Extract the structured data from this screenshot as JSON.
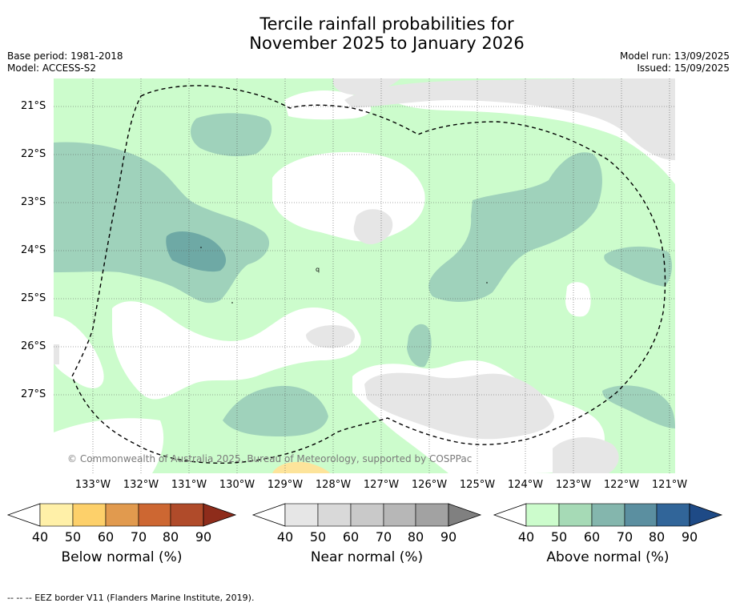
{
  "title_line1": "Tercile rainfall probabilities for",
  "title_line2": "November 2025 to January 2026",
  "meta": {
    "base_period": "Base period: 1981-2018",
    "model": "Model: ACCESS-S2",
    "model_run": "Model run: 13/09/2025",
    "issued": "Issued: 15/09/2025"
  },
  "map": {
    "lat_labels": [
      "21°S",
      "22°S",
      "23°S",
      "24°S",
      "25°S",
      "26°S",
      "27°S"
    ],
    "lon_labels": [
      "133°W",
      "132°W",
      "131°W",
      "130°W",
      "129°W",
      "128°W",
      "127°W",
      "126°W",
      "125°W",
      "124°W",
      "123°W",
      "122°W",
      "121°W"
    ],
    "copyright": "© Commonwealth of Australia 2025, Bureau of Meteorology, supported by COSPPac",
    "colors": {
      "above_40": "#ccfccc",
      "above_50": "#9fd2bb",
      "above_60": "#6ea9a5",
      "near_40": "#e6e6e6",
      "below_40": "#fde49b",
      "ocean_white": "#ffffff"
    }
  },
  "colorbars": [
    {
      "label": "Below normal (%)",
      "ticks": [
        "40",
        "50",
        "60",
        "70",
        "80",
        "90"
      ],
      "colors": [
        "#fff0a8",
        "#fdd06a",
        "#e19a4e",
        "#cd6732",
        "#b04b2a",
        "#8e2c1b"
      ]
    },
    {
      "label": "Near normal (%)",
      "ticks": [
        "40",
        "50",
        "60",
        "70",
        "80",
        "90"
      ],
      "colors": [
        "#e6e6e6",
        "#d9d9d9",
        "#c9c9c9",
        "#b7b7b7",
        "#a2a2a2",
        "#808080"
      ]
    },
    {
      "label": "Above normal (%)",
      "ticks": [
        "40",
        "50",
        "60",
        "70",
        "80",
        "90"
      ],
      "colors": [
        "#ccfccc",
        "#a6dab6",
        "#84b6ad",
        "#5b8fa0",
        "#316599",
        "#1e4a86"
      ]
    }
  ],
  "footer": "-- -- -- EEZ border V11 (Flanders Marine Institute, 2019)."
}
